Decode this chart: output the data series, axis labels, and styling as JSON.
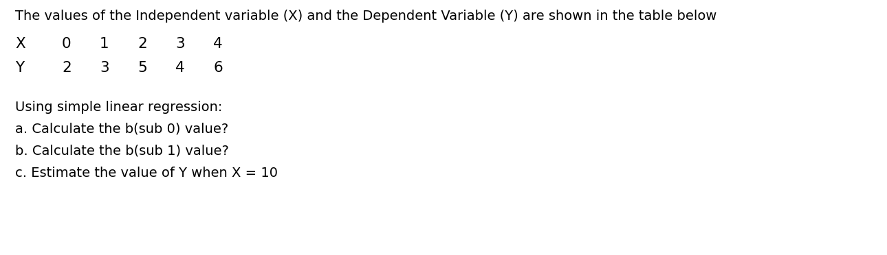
{
  "background_color": "#ffffff",
  "line1": "The values of the Independent variable (X) and the Dependent Variable (Y) are shown in the table below",
  "row_x_label": "X",
  "row_x_values": [
    "0",
    "1",
    "2",
    "3",
    "4"
  ],
  "row_y_label": "Y",
  "row_y_values": [
    "2",
    "3",
    "5",
    "4",
    "6"
  ],
  "line_regression": "Using simple linear regression:",
  "line_a": "a. Calculate the b(sub 0) value?",
  "line_b": "b. Calculate the b(sub 1) value?",
  "line_c": "c. Estimate the value of Y when X = 10",
  "font_size_main": 14.0,
  "font_size_table": 15.5,
  "font_size_questions": 14.0,
  "text_color": "#000000",
  "font_family": "DejaVu Sans"
}
